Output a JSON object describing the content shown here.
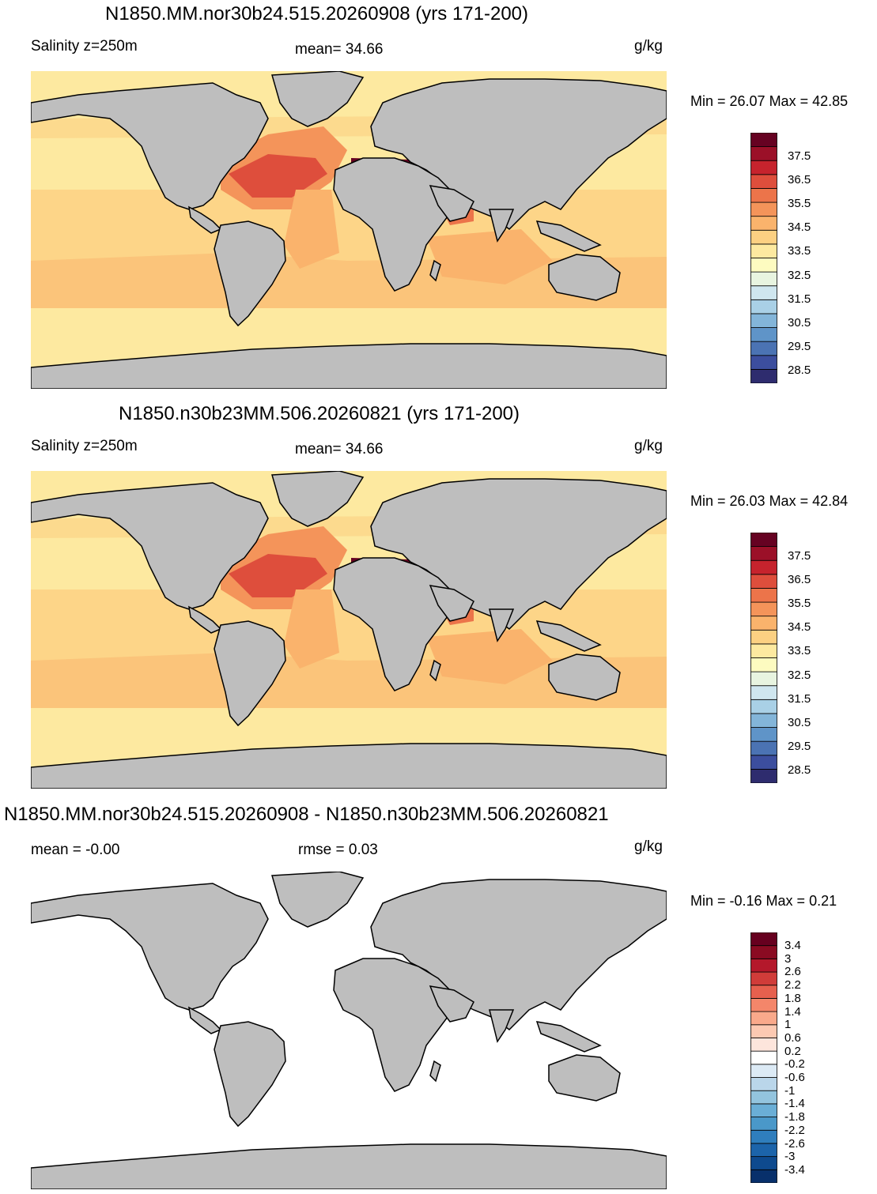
{
  "panels": [
    {
      "title": "N1850.MM.nor30b24.515.20260908 (yrs 171-200)",
      "left_label": "Salinity z=250m",
      "center_label": "mean=  34.66",
      "units": "g/kg",
      "minmax": "Min =  26.07 Max =  42.85",
      "colorbar_ticks": [
        "37.5",
        "36.5",
        "35.5",
        "34.5",
        "33.5",
        "32.5",
        "31.5",
        "30.5",
        "29.5",
        "28.5"
      ]
    },
    {
      "title": "N1850.n30b23MM.506.20260821 (yrs 171-200)",
      "left_label": "Salinity z=250m",
      "center_label": "mean=  34.66",
      "units": "g/kg",
      "minmax": "Min =  26.03 Max =  42.84",
      "colorbar_ticks": [
        "37.5",
        "36.5",
        "35.5",
        "34.5",
        "33.5",
        "32.5",
        "31.5",
        "30.5",
        "29.5",
        "28.5"
      ]
    },
    {
      "title": "N1850.MM.nor30b24.515.20260908 - N1850.n30b23MM.506.20260821",
      "left_label": "mean =  -0.00",
      "center_label": "rmse =    0.03",
      "units": "g/kg",
      "minmax": "Min =  -0.16 Max =    0.21",
      "colorbar_ticks": [
        "3.4",
        "3",
        "2.6",
        "2.2",
        "1.8",
        "1.4",
        "1",
        "0.6",
        "0.2",
        "-0.2",
        "-0.6",
        "-1",
        "-1.4",
        "-1.8",
        "-2.2",
        "-2.6",
        "-3",
        "-3.4"
      ]
    }
  ],
  "colors": {
    "land": "#bebebe",
    "salinity_scale": [
      "#2e2c6e",
      "#3c4e9e",
      "#4b73b3",
      "#5f94c8",
      "#83b5d9",
      "#a9d0e6",
      "#cfe6ef",
      "#e8f4e0",
      "#fdfbc0",
      "#fde9a0",
      "#fcd082",
      "#fab36c",
      "#f4945a",
      "#ec744a",
      "#de4e3c",
      "#c6232d",
      "#9b1028",
      "#660222"
    ],
    "diff_scale": [
      "#08306b",
      "#0e4a8e",
      "#1c64aa",
      "#2f7ebd",
      "#4a98c9",
      "#6aaed6",
      "#93c4de",
      "#bad6ea",
      "#dceaf5",
      "#ffffff",
      "#fde5dc",
      "#fcc9b2",
      "#f9a98b",
      "#f4866a",
      "#e6604e",
      "#d03c39",
      "#b4182b",
      "#8a0b22",
      "#67001f"
    ]
  },
  "chart_data": [
    {
      "type": "heatmap",
      "title": "N1850.MM.nor30b24.515.20260908 (yrs 171-200)",
      "variable": "Salinity z=250m",
      "units": "g/kg",
      "mean": 34.66,
      "min": 26.07,
      "max": 42.85,
      "colorbar_levels": [
        28,
        28.5,
        29,
        29.5,
        30,
        30.5,
        31,
        31.5,
        32,
        32.5,
        33,
        33.5,
        34,
        34.5,
        35,
        35.5,
        36,
        36.5,
        37,
        37.5,
        38
      ],
      "colorbar_labels": [
        37.5,
        36.5,
        35.5,
        34.5,
        33.5,
        32.5,
        31.5,
        30.5,
        29.5,
        28.5
      ]
    },
    {
      "type": "heatmap",
      "title": "N1850.n30b23MM.506.20260821 (yrs 171-200)",
      "variable": "Salinity z=250m",
      "units": "g/kg",
      "mean": 34.66,
      "min": 26.03,
      "max": 42.84,
      "colorbar_levels": [
        28,
        28.5,
        29,
        29.5,
        30,
        30.5,
        31,
        31.5,
        32,
        32.5,
        33,
        33.5,
        34,
        34.5,
        35,
        35.5,
        36,
        36.5,
        37,
        37.5,
        38
      ],
      "colorbar_labels": [
        37.5,
        36.5,
        35.5,
        34.5,
        33.5,
        32.5,
        31.5,
        30.5,
        29.5,
        28.5
      ]
    },
    {
      "type": "heatmap",
      "title": "N1850.MM.nor30b24.515.20260908 - N1850.n30b23MM.506.20260821",
      "units": "g/kg",
      "mean": -0.0,
      "rmse": 0.03,
      "min": -0.16,
      "max": 0.21,
      "colorbar_labels": [
        3.4,
        3,
        2.6,
        2.2,
        1.8,
        1.4,
        1,
        0.6,
        0.2,
        -0.2,
        -0.6,
        -1,
        -1.4,
        -1.8,
        -2.2,
        -2.6,
        -3,
        -3.4
      ]
    }
  ]
}
